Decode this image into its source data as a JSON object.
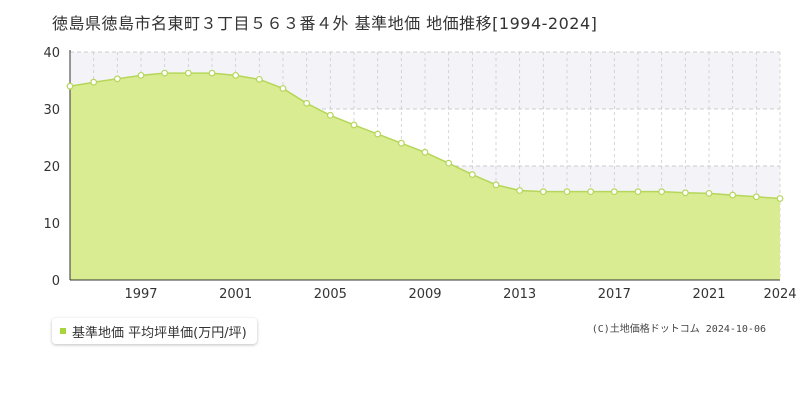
{
  "title": "徳島県徳島市名東町３丁目５６３番４外 基準地価 地価推移[1994-2024]",
  "legend_label": "基準地価 平均坪単価(万円/坪)",
  "copyright": "(C)土地価格ドットコム 2024-10-06",
  "colors": {
    "fill": "#d9ec91",
    "line": "#b5d65a",
    "marker_fill": "#ffffff",
    "marker_stroke": "#b5d65a",
    "legend_swatch": "#a8d43c",
    "grid": "#cccccc",
    "axis_text": "#333333",
    "shade_band": "#f4f4f8"
  },
  "chart_data": {
    "type": "area",
    "xlim": [
      1994,
      2024
    ],
    "ylim": [
      0,
      40
    ],
    "y_ticks": [
      0,
      10,
      20,
      30,
      40
    ],
    "x_tick_labels": [
      "1997",
      "2001",
      "2005",
      "2009",
      "2013",
      "2017",
      "2021",
      "2024"
    ],
    "grid": true,
    "legend_position": "bottom-left",
    "series": [
      {
        "name": "基準地価 平均坪単価(万円/坪)",
        "x": [
          1994,
          1995,
          1996,
          1997,
          1998,
          1999,
          2000,
          2001,
          2002,
          2003,
          2004,
          2005,
          2006,
          2007,
          2008,
          2009,
          2010,
          2011,
          2012,
          2013,
          2014,
          2015,
          2016,
          2017,
          2018,
          2019,
          2020,
          2021,
          2022,
          2023,
          2024
        ],
        "values": [
          34.0,
          34.7,
          35.3,
          35.9,
          36.3,
          36.3,
          36.3,
          35.9,
          35.2,
          33.6,
          31.0,
          28.9,
          27.2,
          25.6,
          24.0,
          22.4,
          20.5,
          18.5,
          16.7,
          15.7,
          15.5,
          15.5,
          15.5,
          15.5,
          15.5,
          15.5,
          15.3,
          15.2,
          14.9,
          14.6,
          14.3
        ]
      }
    ]
  }
}
